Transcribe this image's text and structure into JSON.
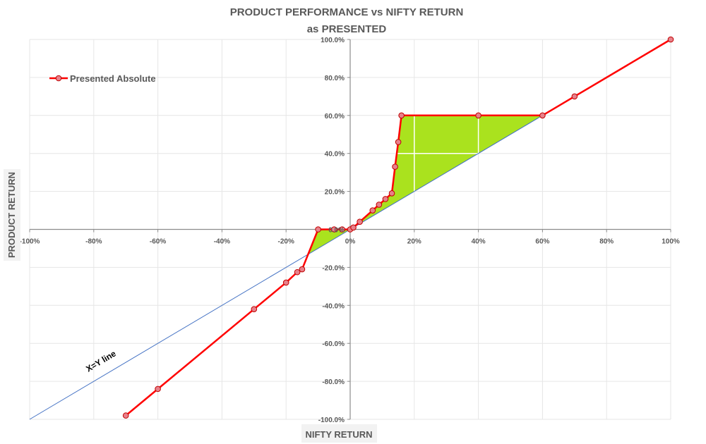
{
  "chart_data": {
    "type": "line",
    "title": "PRODUCT PERFORMANCE vs NIFTY RETURN",
    "subtitle": "as PRESENTED",
    "xlabel": "NIFTY RETURN",
    "ylabel": "PRODUCT RETURN",
    "xlim": [
      -100,
      100
    ],
    "ylim": [
      -100,
      100
    ],
    "x_ticks": [
      -100,
      -80,
      -60,
      -40,
      -20,
      0,
      20,
      40,
      60,
      80,
      100
    ],
    "x_tick_labels": [
      "-100%",
      "-80%",
      "-60%",
      "-40%",
      "-20%",
      "0%",
      "20%",
      "40%",
      "60%",
      "80%",
      "100%"
    ],
    "y_ticks": [
      -100,
      -80,
      -60,
      -40,
      -20,
      0,
      20,
      40,
      60,
      80,
      100
    ],
    "y_tick_labels": [
      "-100.0%",
      "-80.0%",
      "-60.0%",
      "-40.0%",
      "-20.0%",
      "0.0%",
      "20.0%",
      "40.0%",
      "60.0%",
      "80.0%",
      "100.0%"
    ],
    "grid": true,
    "legend_position": "top-left",
    "series": [
      {
        "name": "Presented Absolute",
        "color": "#ff0000",
        "marker_color": "#e8808a",
        "points": [
          [
            -70,
            -98
          ],
          [
            -60,
            -84
          ],
          [
            -30,
            -42
          ],
          [
            -20,
            -28
          ],
          [
            -16.5,
            -22.5
          ],
          [
            -15,
            -21
          ],
          [
            -10,
            0
          ],
          [
            -5,
            0
          ],
          [
            -2.5,
            0
          ],
          [
            0,
            0
          ],
          [
            1,
            1
          ],
          [
            3,
            4
          ],
          [
            7,
            10
          ],
          [
            9,
            13
          ],
          [
            11,
            16
          ],
          [
            13,
            19
          ],
          [
            14,
            33
          ],
          [
            15,
            46
          ],
          [
            16,
            60
          ],
          [
            40,
            60
          ],
          [
            60,
            60
          ],
          [
            70,
            70
          ],
          [
            100,
            100
          ]
        ]
      }
    ],
    "reference_line": {
      "label": "X=Y line",
      "color": "#4472c4",
      "from": [
        -100,
        -100
      ],
      "to": [
        100,
        100
      ]
    },
    "shaded_region": {
      "color": "#aae21e",
      "points": [
        [
          -13.5,
          -13.5
        ],
        [
          -10,
          0
        ],
        [
          0,
          0
        ],
        [
          1,
          1
        ],
        [
          3,
          4
        ],
        [
          7,
          10
        ],
        [
          9,
          13
        ],
        [
          11,
          16
        ],
        [
          13,
          19
        ],
        [
          14,
          33
        ],
        [
          15,
          46
        ],
        [
          16,
          60
        ],
        [
          40,
          60
        ],
        [
          60,
          60
        ]
      ]
    },
    "inner_white_lines": [
      [
        [
          20,
          20
        ],
        [
          20,
          60
        ]
      ],
      [
        [
          40,
          40
        ],
        [
          40,
          60
        ]
      ],
      [
        [
          14,
          40
        ],
        [
          40,
          40
        ]
      ]
    ]
  }
}
